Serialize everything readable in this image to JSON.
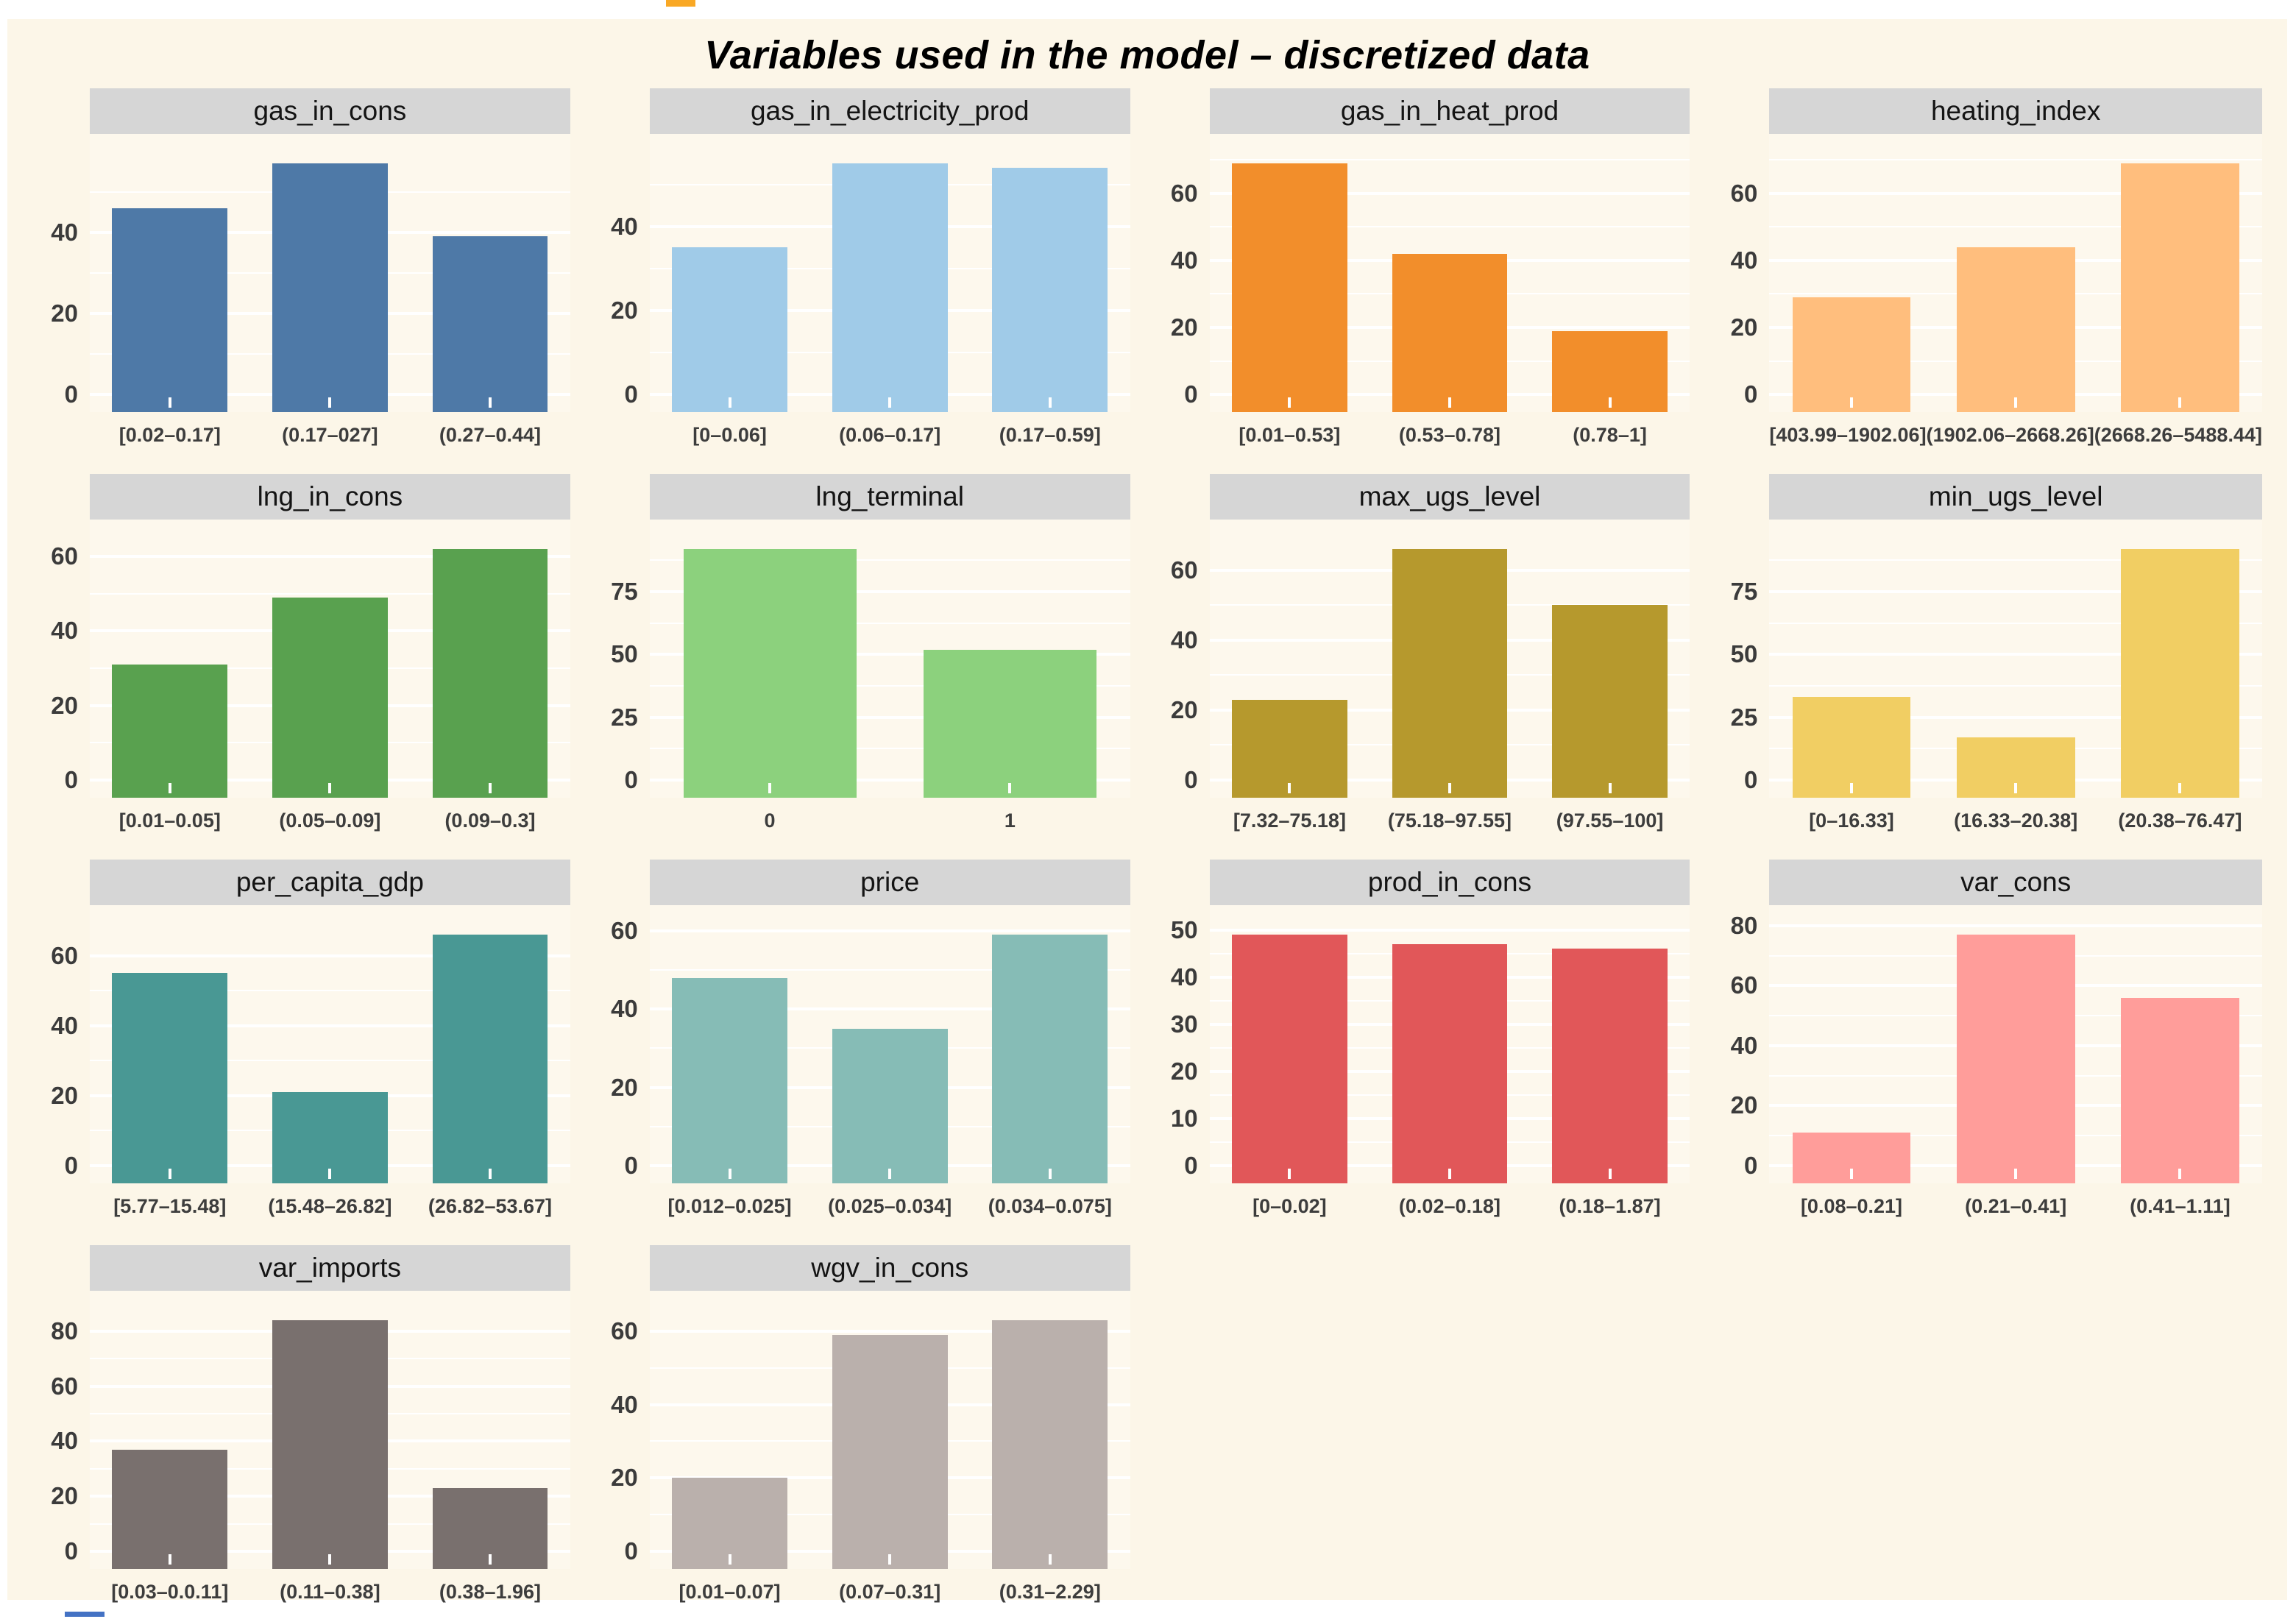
{
  "page": {
    "title": "Variables used in the model – discretized data",
    "background": "#FCF6E8",
    "page_background": "#FFFFFF",
    "strip_background": "#D6D6D6",
    "grid_color": "#FFFFFF",
    "tick_text_color": "#3B3B3B",
    "title_color": "#000000"
  },
  "artifacts": {
    "top_dash_color": "#F9A825",
    "bottom_dash_color": "#4472C4"
  },
  "chart_data": [
    {
      "type": "bar",
      "title": "gas_in_cons",
      "color": "#4E79A7",
      "categories": [
        "[0.02–0.17]",
        "(0.17–027]",
        "(0.27–0.44]"
      ],
      "values": [
        46,
        57,
        39
      ],
      "yticks": [
        0,
        20,
        40
      ],
      "xlabel": "",
      "ylabel": "",
      "grid": true
    },
    {
      "type": "bar",
      "title": "gas_in_electricity_prod",
      "color": "#A0CBE8",
      "categories": [
        "[0–0.06]",
        "(0.06–0.17]",
        "(0.17–0.59]"
      ],
      "values": [
        35,
        55,
        54
      ],
      "yticks": [
        0,
        20,
        40
      ],
      "xlabel": "",
      "ylabel": "",
      "grid": true
    },
    {
      "type": "bar",
      "title": "gas_in_heat_prod",
      "color": "#F28E2B",
      "categories": [
        "[0.01–0.53]",
        "(0.53–0.78]",
        "(0.78–1]"
      ],
      "values": [
        69,
        42,
        19
      ],
      "yticks": [
        0,
        20,
        40,
        60
      ],
      "xlabel": "",
      "ylabel": "",
      "grid": true
    },
    {
      "type": "bar",
      "title": "heating_index",
      "color": "#FFBE7D",
      "categories": [
        "[403.99–1902.06]",
        "(1902.06–2668.26]",
        "(2668.26–5488.44]"
      ],
      "values": [
        29,
        44,
        69
      ],
      "yticks": [
        0,
        20,
        40,
        60
      ],
      "xlabel": "",
      "ylabel": "",
      "grid": true
    },
    {
      "type": "bar",
      "title": "lng_in_cons",
      "color": "#59A14F",
      "categories": [
        "[0.01–0.05]",
        "(0.05–0.09]",
        "(0.09–0.3]"
      ],
      "values": [
        31,
        49,
        62
      ],
      "yticks": [
        0,
        20,
        40,
        60
      ],
      "xlabel": "",
      "ylabel": "",
      "grid": true
    },
    {
      "type": "bar",
      "title": "lng_terminal",
      "color": "#8CD17D",
      "categories": [
        "0",
        "1"
      ],
      "values": [
        92,
        52
      ],
      "yticks": [
        0,
        25,
        50,
        75
      ],
      "xlabel": "",
      "ylabel": "",
      "grid": true
    },
    {
      "type": "bar",
      "title": "max_ugs_level",
      "color": "#B6992D",
      "categories": [
        "[7.32–75.18]",
        "(75.18–97.55]",
        "(97.55–100]"
      ],
      "values": [
        23,
        66,
        50
      ],
      "yticks": [
        0,
        20,
        40,
        60
      ],
      "xlabel": "",
      "ylabel": "",
      "grid": true
    },
    {
      "type": "bar",
      "title": "min_ugs_level",
      "color": "#F1CE63",
      "categories": [
        "[0–16.33]",
        "(16.33–20.38]",
        "(20.38–76.47]"
      ],
      "values": [
        33,
        17,
        92
      ],
      "yticks": [
        0,
        25,
        50,
        75
      ],
      "xlabel": "",
      "ylabel": "",
      "grid": true
    },
    {
      "type": "bar",
      "title": "per_capita_gdp",
      "color": "#499894",
      "categories": [
        "[5.77–15.48]",
        "(15.48–26.82]",
        "(26.82–53.67]"
      ],
      "values": [
        55,
        21,
        66
      ],
      "yticks": [
        0,
        20,
        40,
        60
      ],
      "xlabel": "",
      "ylabel": "",
      "grid": true
    },
    {
      "type": "bar",
      "title": "price",
      "color": "#86BCB6",
      "categories": [
        "[0.012–0.025]",
        "(0.025–0.034]",
        "(0.034–0.075]"
      ],
      "values": [
        48,
        35,
        59
      ],
      "yticks": [
        0,
        20,
        40,
        60
      ],
      "xlabel": "",
      "ylabel": "",
      "grid": true
    },
    {
      "type": "bar",
      "title": "prod_in_cons",
      "color": "#E15759",
      "categories": [
        "[0–0.02]",
        "(0.02–0.18]",
        "(0.18–1.87]"
      ],
      "values": [
        49,
        47,
        46
      ],
      "yticks": [
        0,
        10,
        20,
        30,
        40,
        50
      ],
      "xlabel": "",
      "ylabel": "",
      "grid": true
    },
    {
      "type": "bar",
      "title": "var_cons",
      "color": "#FF9D9A",
      "categories": [
        "[0.08–0.21]",
        "(0.21–0.41]",
        "(0.41–1.11]"
      ],
      "values": [
        11,
        77,
        56
      ],
      "yticks": [
        0,
        20,
        40,
        60,
        80
      ],
      "xlabel": "",
      "ylabel": "",
      "grid": true
    },
    {
      "type": "bar",
      "title": "var_imports",
      "color": "#79706E",
      "categories": [
        "[0.03–0.0.11]",
        "(0.11–0.38]",
        "(0.38–1.96]"
      ],
      "values": [
        37,
        84,
        23
      ],
      "yticks": [
        0,
        20,
        40,
        60,
        80
      ],
      "xlabel": "",
      "ylabel": "",
      "grid": true
    },
    {
      "type": "bar",
      "title": "wgv_in_cons",
      "color": "#BAB0AC",
      "categories": [
        "[0.01–0.07]",
        "(0.07–0.31]",
        "(0.31–2.29]"
      ],
      "values": [
        20,
        59,
        63
      ],
      "yticks": [
        0,
        20,
        40,
        60
      ],
      "xlabel": "",
      "ylabel": "",
      "grid": true
    }
  ]
}
